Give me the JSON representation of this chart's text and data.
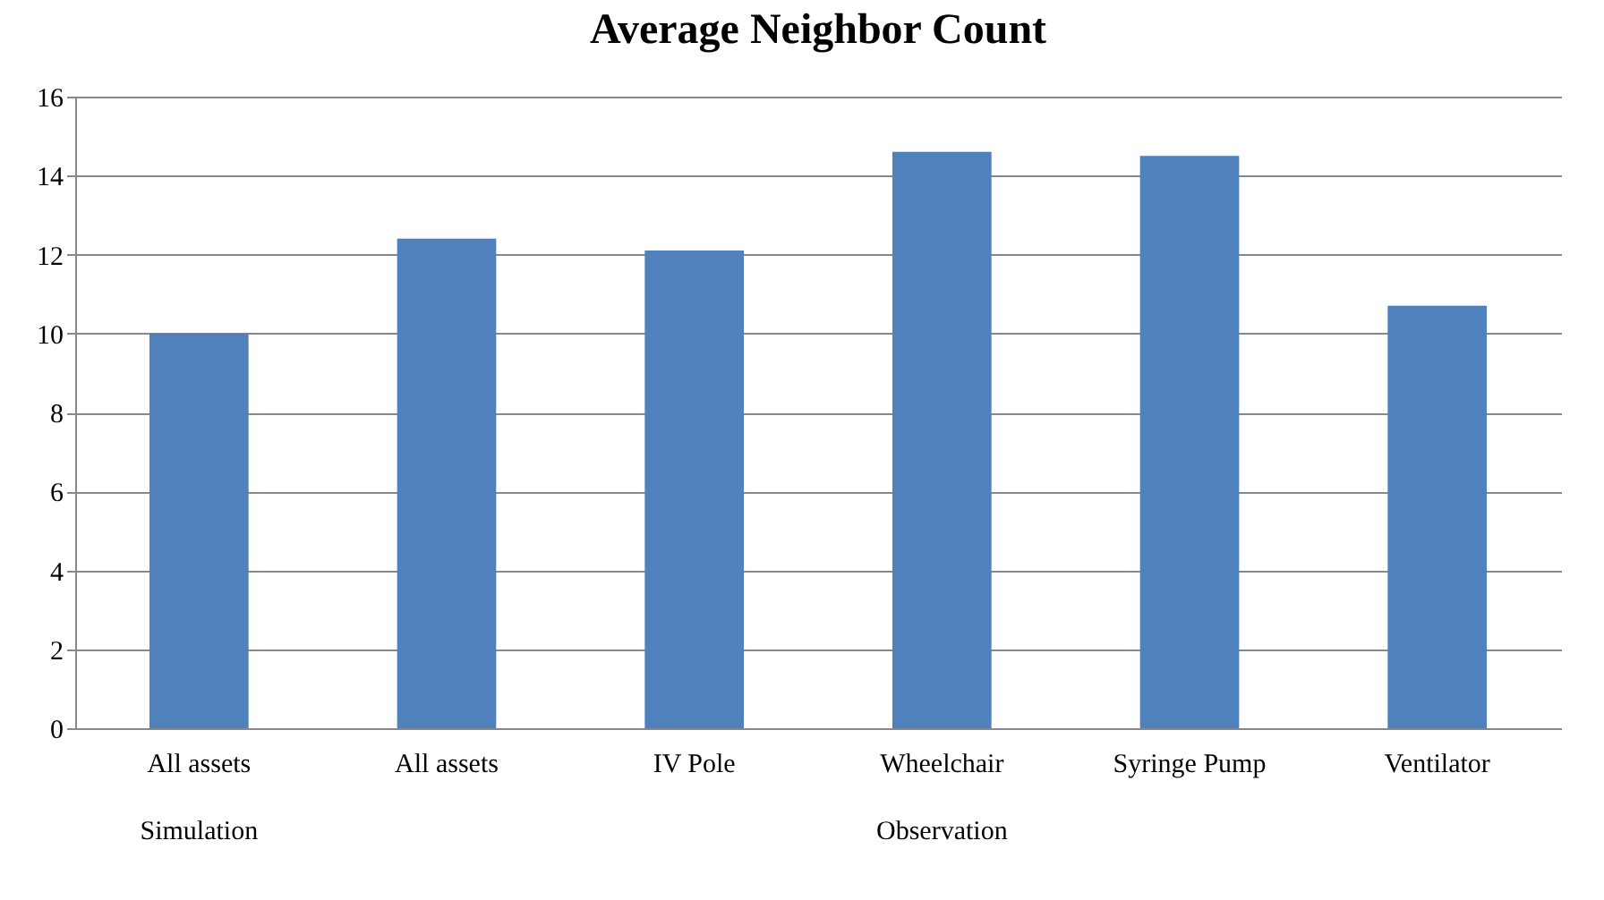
{
  "chart_data": {
    "type": "bar",
    "title": "Average Neighbor Count",
    "categories": [
      "All assets",
      "All assets",
      "IV Pole",
      "Wheelchair",
      "Syringe Pump",
      "Ventilator"
    ],
    "values": [
      10,
      12.4,
      12.1,
      14.6,
      14.5,
      10.7
    ],
    "color": "#4f81bd",
    "ylim": [
      0,
      16
    ],
    "yticks": [
      0,
      2,
      4,
      6,
      8,
      10,
      12,
      14,
      16
    ],
    "grid": "y",
    "annotations": [
      "Simulation",
      "Observation"
    ]
  }
}
